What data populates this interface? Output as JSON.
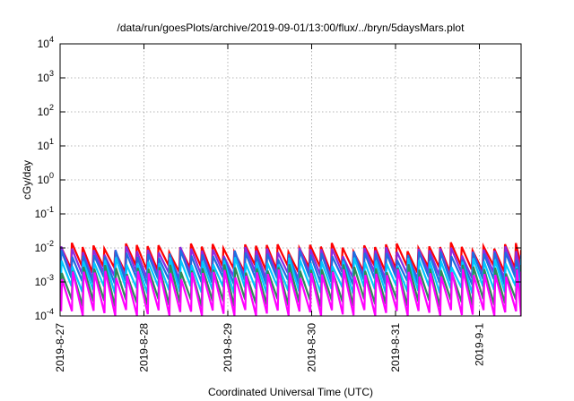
{
  "chart_data": {
    "type": "line",
    "title": "/data/run/goesPlots/archive/2019-09-01/13:00/flux/../bryn/5daysMars.plot",
    "xlabel": "Coordinated Universal Time (UTC)",
    "ylabel": "cGy/day",
    "yscale": "log",
    "ylim": [
      0.0001,
      10000
    ],
    "xlim": [
      "2019-08-27 00:00",
      "2019-09-01 13:00"
    ],
    "grid": true,
    "legend": "none",
    "x_tick_labels": [
      "2019-8-27",
      "2019-8-28",
      "2019-8-29",
      "2019-8-30",
      "2019-8-31",
      "2019-9-1"
    ],
    "y_tick_labels": [
      {
        "base": "10",
        "exp": "-4"
      },
      {
        "base": "10",
        "exp": "-3"
      },
      {
        "base": "10",
        "exp": "-2"
      },
      {
        "base": "10",
        "exp": "-1"
      },
      {
        "base": "10",
        "exp": "0"
      },
      {
        "base": "10",
        "exp": "1"
      },
      {
        "base": "10",
        "exp": "2"
      },
      {
        "base": "10",
        "exp": "3"
      },
      {
        "base": "10",
        "exp": "4"
      }
    ],
    "pattern": {
      "period_hours": 3.1,
      "description": "sawtooth: sharp rise then decay each period"
    },
    "series": [
      {
        "color": "#ff0000",
        "peak": 0.011,
        "trough": 0.0025
      },
      {
        "color": "#8a2be2",
        "peak": 0.0085,
        "trough": 0.0016
      },
      {
        "color": "#1e6fe0",
        "peak": 0.0065,
        "trough": 0.0011
      },
      {
        "color": "#00c8ff",
        "peak": 0.004,
        "trough": 0.0006
      },
      {
        "color": "#2e8b57",
        "peak": 0.0025,
        "trough": 0.00025
      },
      {
        "color": "#ff00ff",
        "peak": 0.0018,
        "trough": 0.00012
      }
    ]
  }
}
